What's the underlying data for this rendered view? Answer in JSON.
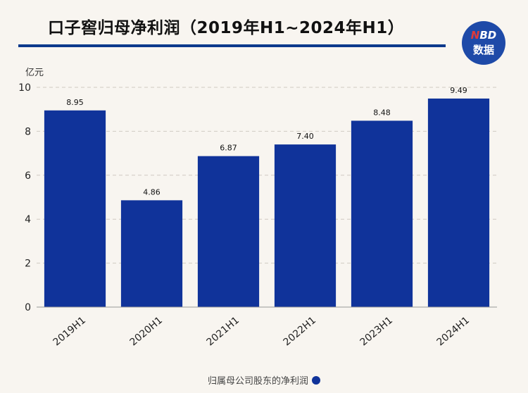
{
  "header": {
    "title": "口子窖归母净利润（2019年H1~2024年H1）",
    "logo_top": "NBD",
    "logo_bottom": "数据"
  },
  "colors": {
    "bar": "#10339a",
    "accent_rule": "#0d3a8c",
    "logo_bg": "#1e4aa8"
  },
  "chart_data": {
    "type": "bar",
    "categories": [
      "2019H1",
      "2020H1",
      "2021H1",
      "2022H1",
      "2023H1",
      "2024H1"
    ],
    "series": [
      {
        "name": "归属母公司股东的净利润",
        "values": [
          8.95,
          4.86,
          6.87,
          7.4,
          8.48,
          9.49
        ]
      }
    ],
    "value_labels": [
      "8.95",
      "4.86",
      "6.87",
      "7.40",
      "8.48",
      "9.49"
    ],
    "title": "口子窖归母净利润（2019年H1~2024年H1）",
    "xlabel": "",
    "ylabel": "亿元",
    "ylim": [
      0,
      10
    ],
    "yticks": [
      0,
      2,
      4,
      6,
      8,
      10
    ],
    "grid": true,
    "legend_position": "bottom-center"
  },
  "legend": {
    "label": "归属母公司股东的净利润"
  }
}
